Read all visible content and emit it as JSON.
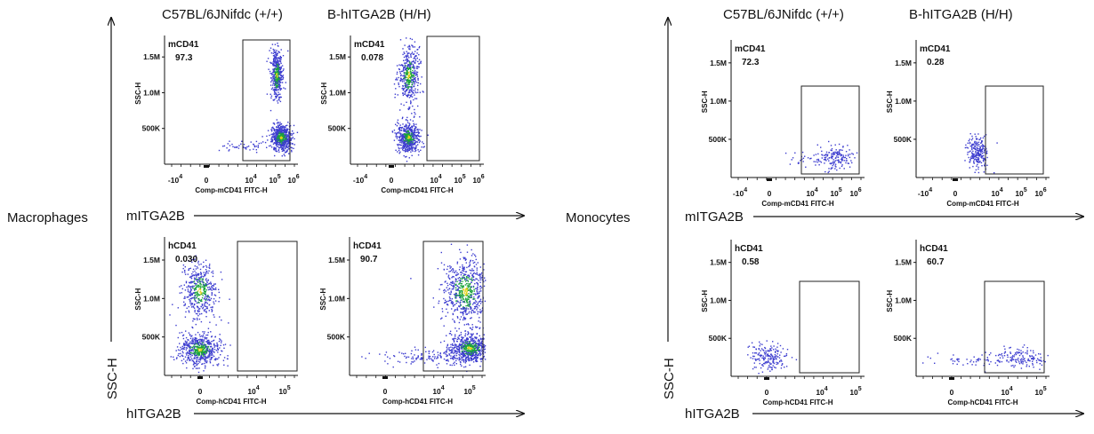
{
  "conditions": [
    "C57BL/6JNifdc  (+/+)",
    "B-hITGA2B (H/H)"
  ],
  "panels": [
    {
      "label": "Macrophages",
      "y_axis": "SSC-H",
      "row_labels": [
        "mITGA2B",
        "hITGA2B"
      ]
    },
    {
      "label": "Monocytes",
      "y_axis": "SSC-H",
      "row_labels": [
        "mITGA2B",
        "hITGA2B"
      ]
    }
  ],
  "chart_data": [
    {
      "type": "scatter",
      "panel": "Macrophages",
      "strain": "C57BL/6JNifdc (+/+)",
      "gate": "mCD41",
      "percent": "97.3",
      "xlabel": "Comp-mCD41 FITC-H",
      "ylabel": "SSC-H",
      "x_ticks": [
        "-10^4",
        "0",
        "10^4",
        "10^5",
        "10^6"
      ],
      "y_ticks": [
        "500K",
        "1.0M",
        "1.5M"
      ],
      "populations": [
        {
          "x_log": 5.2,
          "y": 1250000,
          "n": 420,
          "sx": 0.16,
          "sy": 170000
        },
        {
          "x_log": 5.45,
          "y": 380000,
          "n": 620,
          "sx": 0.28,
          "sy": 90000
        },
        {
          "x_log": 3.4,
          "y": 260000,
          "n": 45,
          "sx": 0.7,
          "sy": 40000
        }
      ]
    },
    {
      "type": "scatter",
      "panel": "Macrophages",
      "strain": "B-hITGA2B (H/H)",
      "gate": "mCD41",
      "percent": "0.078",
      "xlabel": "Comp-mCD41 FITC-H",
      "ylabel": "SSC-H",
      "x_ticks": [
        "-10^4",
        "0",
        "10^4",
        "10^5",
        "10^6"
      ],
      "y_ticks": [
        "500K",
        "1.0M",
        "1.5M"
      ],
      "populations": [
        {
          "x_log": 2.2,
          "y": 1250000,
          "n": 450,
          "sx": 0.3,
          "sy": 200000
        },
        {
          "x_log": 2.2,
          "y": 380000,
          "n": 560,
          "sx": 0.3,
          "sy": 100000
        }
      ]
    },
    {
      "type": "scatter",
      "panel": "Macrophages",
      "strain": "C57BL/6JNifdc (+/+)",
      "gate": "hCD41",
      "percent": "0.030",
      "xlabel": "Comp-hCD41 FITC-H",
      "ylabel": "SSC-H",
      "x_ticks": [
        "0",
        "10^4",
        "10^5"
      ],
      "y_ticks": [
        "500K",
        "1.0M",
        "1.5M"
      ],
      "populations": [
        {
          "x_log": 2.3,
          "y": 1100000,
          "n": 450,
          "sx": 0.28,
          "sy": 180000
        },
        {
          "x_log": 2.3,
          "y": 340000,
          "n": 580,
          "sx": 0.32,
          "sy": 100000
        }
      ]
    },
    {
      "type": "scatter",
      "panel": "Macrophages",
      "strain": "B-hITGA2B (H/H)",
      "gate": "hCD41",
      "percent": "90.7",
      "xlabel": "Comp-hCD41 FITC-H",
      "ylabel": "SSC-H",
      "x_ticks": [
        "0",
        "10^4",
        "10^5"
      ],
      "y_ticks": [
        "500K",
        "1.0M",
        "1.5M"
      ],
      "populations": [
        {
          "x_log": 4.75,
          "y": 1100000,
          "n": 650,
          "sx": 0.35,
          "sy": 220000
        },
        {
          "x_log": 4.9,
          "y": 360000,
          "n": 650,
          "sx": 0.3,
          "sy": 90000
        },
        {
          "x_log": 3.8,
          "y": 250000,
          "n": 150,
          "sx": 0.8,
          "sy": 50000
        }
      ]
    },
    {
      "type": "scatter",
      "panel": "Monocytes",
      "strain": "C57BL/6JNifdc (+/+)",
      "gate": "mCD41",
      "percent": "72.3",
      "xlabel": "Comp-mCD41 FITC-H",
      "ylabel": "SSC-H",
      "x_ticks": [
        "-10^4",
        "0",
        "10^4",
        "10^5",
        "10^6"
      ],
      "y_ticks": [
        "500K",
        "1.0M",
        "1.5M"
      ],
      "populations": [
        {
          "x_log": 4.8,
          "y": 280000,
          "n": 140,
          "sx": 0.5,
          "sy": 80000
        },
        {
          "x_log": 3.3,
          "y": 250000,
          "n": 40,
          "sx": 0.7,
          "sy": 40000
        }
      ]
    },
    {
      "type": "scatter",
      "panel": "Monocytes",
      "strain": "B-hITGA2B (H/H)",
      "gate": "mCD41",
      "percent": "0.28",
      "xlabel": "Comp-mCD41 FITC-H",
      "ylabel": "SSC-H",
      "x_ticks": [
        "-10^4",
        "0",
        "10^4",
        "10^5",
        "10^6"
      ],
      "y_ticks": [
        "500K",
        "1.0M",
        "1.5M"
      ],
      "populations": [
        {
          "x_log": 2.4,
          "y": 320000,
          "n": 230,
          "sx": 0.28,
          "sy": 110000
        }
      ]
    },
    {
      "type": "scatter",
      "panel": "Monocytes",
      "strain": "C57BL/6JNifdc (+/+)",
      "gate": "hCD41",
      "percent": "0.58",
      "xlabel": "Comp-hCD41 FITC-H",
      "ylabel": "SSC-H",
      "x_ticks": [
        "0",
        "10^4",
        "10^5"
      ],
      "y_ticks": [
        "500K",
        "1.0M",
        "1.5M"
      ],
      "populations": [
        {
          "x_log": 2.4,
          "y": 260000,
          "n": 180,
          "sx": 0.3,
          "sy": 90000
        }
      ]
    },
    {
      "type": "scatter",
      "panel": "Monocytes",
      "strain": "B-hITGA2B (H/H)",
      "gate": "hCD41",
      "percent": "60.7",
      "xlabel": "Comp-hCD41 FITC-H",
      "ylabel": "SSC-H",
      "x_ticks": [
        "0",
        "10^4",
        "10^5"
      ],
      "y_ticks": [
        "500K",
        "1.0M",
        "1.5M"
      ],
      "populations": [
        {
          "x_log": 4.6,
          "y": 260000,
          "n": 150,
          "sx": 0.55,
          "sy": 70000
        },
        {
          "x_log": 3.3,
          "y": 220000,
          "n": 60,
          "sx": 0.8,
          "sy": 40000
        }
      ]
    }
  ],
  "colors": {
    "dot": "#3c3ccf",
    "dense": "#19a33a",
    "core": "#e0d21c",
    "axis": "#111111"
  }
}
